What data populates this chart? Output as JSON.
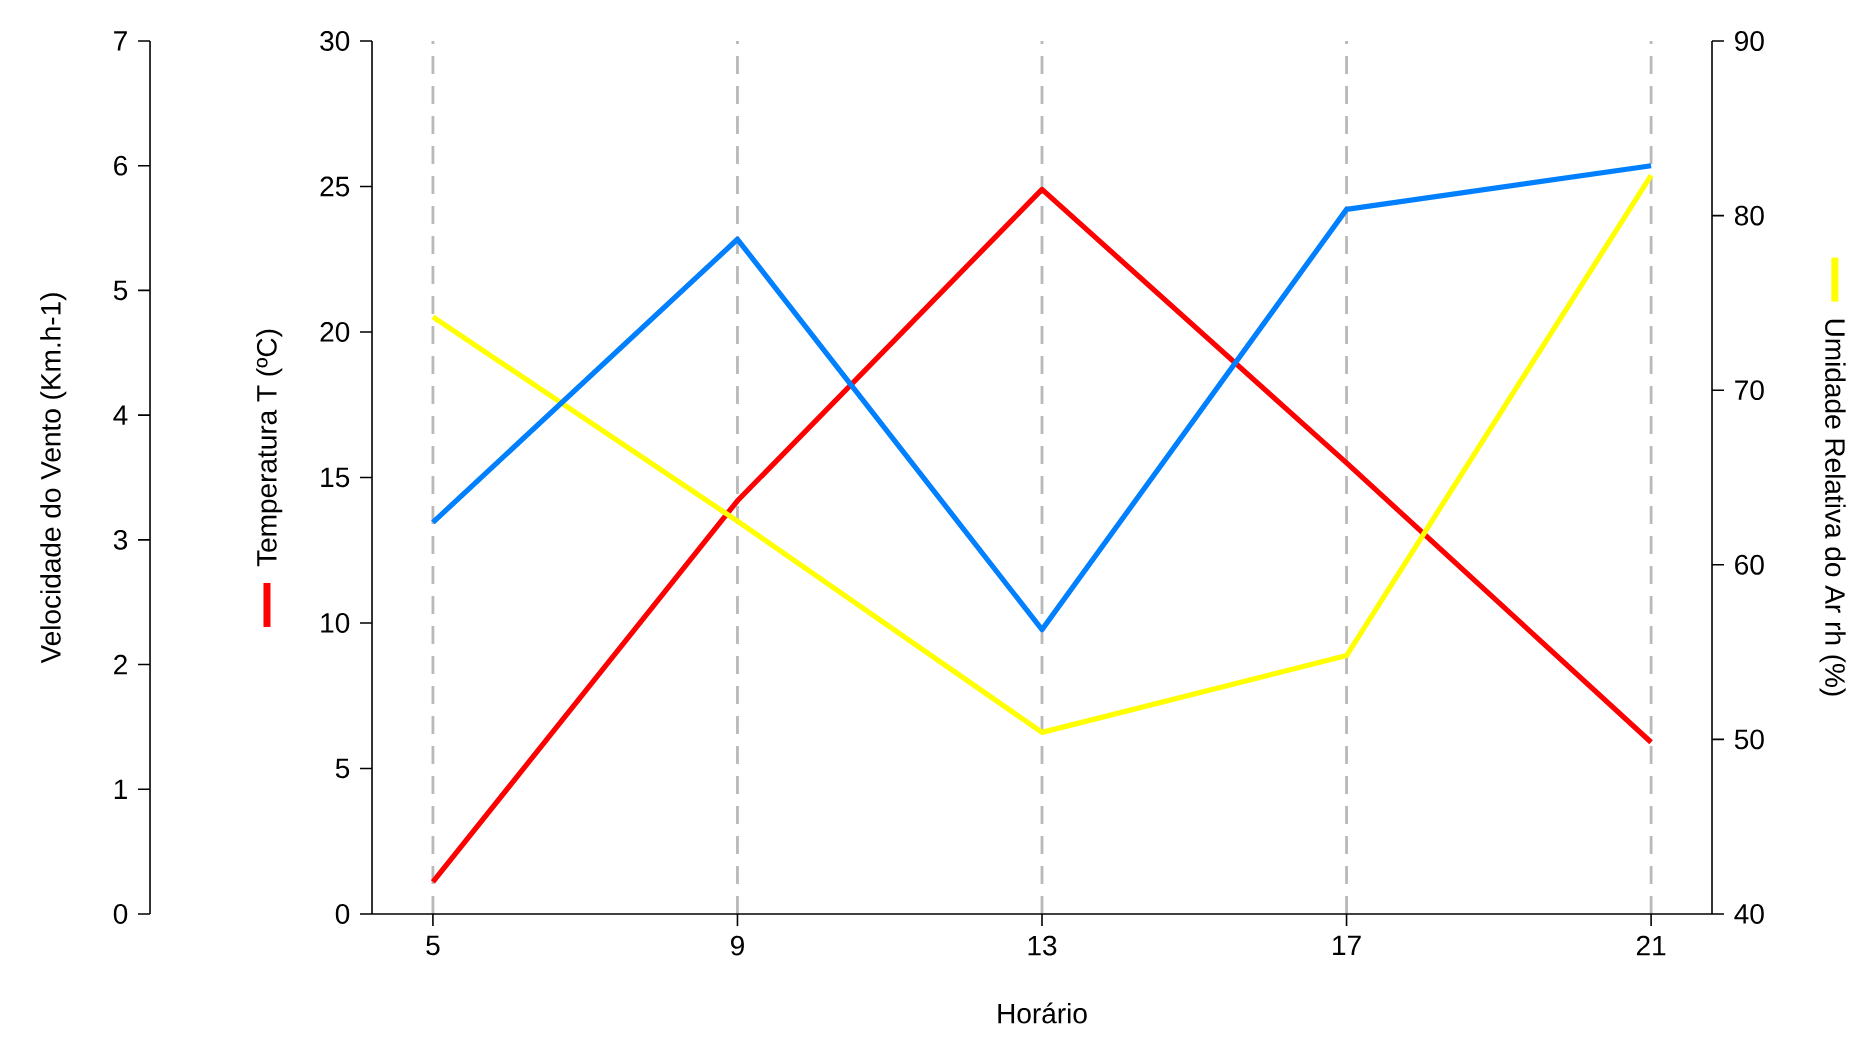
{
  "chart_data": {
    "type": "line",
    "xlabel": "Horário",
    "ylabel": "Temperatura T (ºC)",
    "y2label": "Umidade Relativa do Ar rh (%)",
    "y3label": "Velocidade do Vento (Km.h-1)",
    "x": [
      5,
      9,
      13,
      17,
      21
    ],
    "xlim": [
      4.2,
      21.8
    ],
    "xticks": [
      5,
      9,
      13,
      17,
      21
    ],
    "ylim": [
      0,
      30
    ],
    "yticks": [
      0,
      5,
      10,
      15,
      20,
      25,
      30
    ],
    "y2lim": [
      40,
      90
    ],
    "y2ticks": [
      40,
      50,
      60,
      70,
      80,
      90
    ],
    "y3lim": [
      0,
      7
    ],
    "y3ticks": [
      0,
      1,
      2,
      3,
      4,
      5,
      6,
      7
    ],
    "grid": "x",
    "series": [
      {
        "color": "#ff0000",
        "values": [
          1.1,
          14.2,
          24.9,
          15.5,
          5.9
        ]
      },
      {
        "color": "#ffff00",
        "axis": "y2",
        "values": [
          74.2,
          62.5,
          50.4,
          54.8,
          82.3
        ]
      },
      {
        "color": "#0080ff",
        "axis": "y3",
        "values": [
          3.14,
          5.41,
          2.28,
          5.65,
          6.0
        ]
      }
    ]
  }
}
